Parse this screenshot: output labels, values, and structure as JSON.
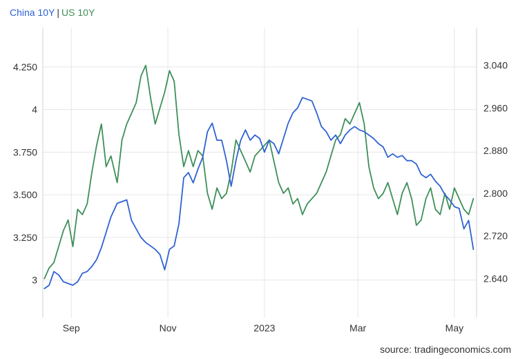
{
  "chart_data": {
    "type": "line",
    "legend_position": "top-left",
    "grid": true,
    "x_ticks": [
      "Sep",
      "Nov",
      "2023",
      "Mar",
      "May"
    ],
    "y_left": {
      "ticks": [
        "3",
        "3.250",
        "3.500",
        "3.750",
        "4",
        "4.250"
      ],
      "range": [
        2.78,
        4.48
      ]
    },
    "y_right": {
      "ticks": [
        "2.640",
        "2.720",
        "2.800",
        "2.880",
        "2.960",
        "3.040"
      ],
      "range": [
        2.5668,
        3.1108
      ]
    },
    "series": [
      {
        "name": "China 10Y",
        "axis": "left",
        "color": "#2f62d3",
        "x": [
          "2022-08-15",
          "2022-08-18",
          "2022-08-21",
          "2022-08-24",
          "2022-08-27",
          "2022-08-30",
          "2022-09-02",
          "2022-09-05",
          "2022-09-08",
          "2022-09-11",
          "2022-09-14",
          "2022-09-17",
          "2022-09-20",
          "2022-09-23",
          "2022-09-26",
          "2022-09-30",
          "2022-10-03",
          "2022-10-06",
          "2022-10-09",
          "2022-10-12",
          "2022-10-15",
          "2022-10-18",
          "2022-10-21",
          "2022-10-24",
          "2022-10-27",
          "2022-10-30",
          "2022-11-02",
          "2022-11-05",
          "2022-11-08",
          "2022-11-11",
          "2022-11-14",
          "2022-11-17",
          "2022-11-20",
          "2022-11-23",
          "2022-11-26",
          "2022-11-29",
          "2022-12-02",
          "2022-12-05",
          "2022-12-08",
          "2022-12-11",
          "2022-12-14",
          "2022-12-17",
          "2022-12-20",
          "2022-12-23",
          "2022-12-26",
          "2022-12-29",
          "2023-01-01",
          "2023-01-04",
          "2023-01-07",
          "2023-01-10",
          "2023-01-13",
          "2023-01-16",
          "2023-01-19",
          "2023-01-22",
          "2023-01-25",
          "2023-01-28",
          "2023-01-31",
          "2023-02-03",
          "2023-02-06",
          "2023-02-09",
          "2023-02-12",
          "2023-02-15",
          "2023-02-18",
          "2023-02-21",
          "2023-02-24",
          "2023-02-27",
          "2023-03-02",
          "2023-03-05",
          "2023-03-08",
          "2023-03-11",
          "2023-03-14",
          "2023-03-17",
          "2023-03-20",
          "2023-03-23",
          "2023-03-26",
          "2023-03-29",
          "2023-04-01",
          "2023-04-04",
          "2023-04-07",
          "2023-04-10",
          "2023-04-13",
          "2023-04-16",
          "2023-04-19",
          "2023-04-22",
          "2023-04-25",
          "2023-04-28",
          "2023-05-01",
          "2023-05-04",
          "2023-05-07",
          "2023-05-10",
          "2023-05-13"
        ],
        "values": [
          2.95,
          2.97,
          3.05,
          3.03,
          2.99,
          2.98,
          2.97,
          2.99,
          3.04,
          3.05,
          3.08,
          3.12,
          3.19,
          3.28,
          3.37,
          3.45,
          3.46,
          3.47,
          3.35,
          3.3,
          3.25,
          3.22,
          3.2,
          3.18,
          3.15,
          3.06,
          3.18,
          3.2,
          3.33,
          3.6,
          3.63,
          3.57,
          3.65,
          3.72,
          3.87,
          3.92,
          3.82,
          3.82,
          3.7,
          3.55,
          3.7,
          3.82,
          3.88,
          3.82,
          3.85,
          3.83,
          3.75,
          3.82,
          3.8,
          3.74,
          3.83,
          3.92,
          3.98,
          4.01,
          4.07,
          4.06,
          4.05,
          3.98,
          3.9,
          3.87,
          3.82,
          3.85,
          3.8,
          3.85,
          3.88,
          3.9,
          3.88,
          3.87,
          3.85,
          3.83,
          3.8,
          3.78,
          3.72,
          3.74,
          3.72,
          3.73,
          3.7,
          3.7,
          3.68,
          3.62,
          3.6,
          3.62,
          3.58,
          3.55,
          3.5,
          3.47,
          3.43,
          3.42,
          3.3,
          3.35,
          3.18
        ]
      },
      {
        "name": "US 10Y",
        "axis": "right",
        "color": "#3d8f58",
        "x": [
          "2022-08-15",
          "2022-08-18",
          "2022-08-21",
          "2022-08-24",
          "2022-08-27",
          "2022-08-30",
          "2022-09-02",
          "2022-09-05",
          "2022-09-08",
          "2022-09-11",
          "2022-09-14",
          "2022-09-17",
          "2022-09-20",
          "2022-09-23",
          "2022-09-26",
          "2022-09-30",
          "2022-10-03",
          "2022-10-06",
          "2022-10-09",
          "2022-10-12",
          "2022-10-15",
          "2022-10-18",
          "2022-10-21",
          "2022-10-24",
          "2022-10-27",
          "2022-10-30",
          "2022-11-02",
          "2022-11-05",
          "2022-11-08",
          "2022-11-11",
          "2022-11-14",
          "2022-11-17",
          "2022-11-20",
          "2022-11-23",
          "2022-11-26",
          "2022-11-29",
          "2022-12-02",
          "2022-12-05",
          "2022-12-08",
          "2022-12-11",
          "2022-12-14",
          "2022-12-17",
          "2022-12-20",
          "2022-12-23",
          "2022-12-26",
          "2022-12-29",
          "2023-01-01",
          "2023-01-04",
          "2023-01-07",
          "2023-01-10",
          "2023-01-13",
          "2023-01-16",
          "2023-01-19",
          "2023-01-22",
          "2023-01-25",
          "2023-01-28",
          "2023-01-31",
          "2023-02-03",
          "2023-02-06",
          "2023-02-09",
          "2023-02-12",
          "2023-02-15",
          "2023-02-18",
          "2023-02-21",
          "2023-02-24",
          "2023-02-27",
          "2023-03-02",
          "2023-03-05",
          "2023-03-08",
          "2023-03-11",
          "2023-03-14",
          "2023-03-17",
          "2023-03-20",
          "2023-03-23",
          "2023-03-26",
          "2023-03-29",
          "2023-04-01",
          "2023-04-04",
          "2023-04-07",
          "2023-04-10",
          "2023-04-13",
          "2023-04-16",
          "2023-04-19",
          "2023-04-22",
          "2023-04-25",
          "2023-04-28",
          "2023-05-01",
          "2023-05-04",
          "2023-05-07",
          "2023-05-10",
          "2023-05-13"
        ],
        "values": [
          2.64,
          2.66,
          2.67,
          2.7,
          2.73,
          2.75,
          2.7,
          2.77,
          2.76,
          2.78,
          2.84,
          2.89,
          2.93,
          2.85,
          2.87,
          2.82,
          2.9,
          2.93,
          2.95,
          2.97,
          3.02,
          3.04,
          2.98,
          2.93,
          2.96,
          2.99,
          3.03,
          3.01,
          2.91,
          2.85,
          2.88,
          2.85,
          2.88,
          2.87,
          2.8,
          2.77,
          2.81,
          2.79,
          2.8,
          2.84,
          2.9,
          2.88,
          2.86,
          2.84,
          2.87,
          2.88,
          2.89,
          2.9,
          2.86,
          2.82,
          2.8,
          2.81,
          2.78,
          2.79,
          2.76,
          2.78,
          2.79,
          2.8,
          2.82,
          2.84,
          2.87,
          2.9,
          2.91,
          2.94,
          2.93,
          2.95,
          2.97,
          2.93,
          2.85,
          2.81,
          2.79,
          2.8,
          2.82,
          2.79,
          2.76,
          2.8,
          2.82,
          2.79,
          2.74,
          2.75,
          2.79,
          2.81,
          2.77,
          2.76,
          2.8,
          2.77,
          2.81,
          2.79,
          2.77,
          2.76,
          2.79
        ]
      }
    ]
  },
  "source": "source: tradingeconomics.com"
}
